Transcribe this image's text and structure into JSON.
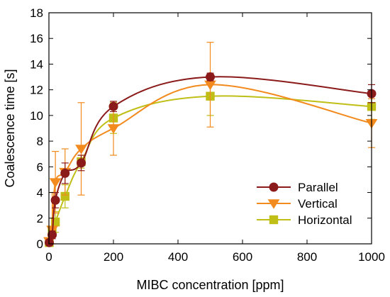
{
  "chart_data": {
    "type": "line",
    "title": "",
    "xlabel": "MIBC concentration [ppm]",
    "ylabel": "Coalescence time [s]",
    "xlim": [
      0,
      1000
    ],
    "ylim": [
      0,
      18
    ],
    "xticks": [
      0,
      200,
      400,
      600,
      800,
      1000
    ],
    "yticks": [
      0,
      2,
      4,
      6,
      8,
      10,
      12,
      14,
      16,
      18
    ],
    "grid": false,
    "legend_position": "bottom-right",
    "series": [
      {
        "name": "Parallel",
        "marker": "circle",
        "color": "#8B1A1A",
        "x": [
          1,
          10,
          20,
          50,
          100,
          200,
          500,
          1000
        ],
        "y": [
          0.1,
          0.7,
          3.4,
          5.5,
          6.3,
          10.7,
          13.0,
          11.7
        ],
        "err": [
          0.1,
          0.3,
          0.6,
          0.8,
          0.6,
          0.4,
          0.3,
          0.7
        ]
      },
      {
        "name": "Vertical",
        "marker": "triangle-down",
        "color": "#F28A1E",
        "x": [
          1,
          10,
          20,
          50,
          100,
          200,
          500,
          1000
        ],
        "y": [
          0.2,
          1.1,
          4.8,
          5.6,
          7.4,
          9.0,
          12.4,
          9.4
        ],
        "err": [
          0.1,
          2.9,
          2.4,
          1.8,
          3.6,
          2.1,
          3.3,
          1.9
        ]
      },
      {
        "name": "Horizontal",
        "marker": "square",
        "color": "#BFBF17",
        "x": [
          1,
          10,
          20,
          50,
          100,
          200,
          500,
          1000
        ],
        "y": [
          0.1,
          0.9,
          1.7,
          3.7,
          6.4,
          9.8,
          11.5,
          10.7
        ],
        "err": [
          0.1,
          0.3,
          0.8,
          0.9,
          0.5,
          1.2,
          1.5,
          1.0
        ]
      }
    ]
  }
}
